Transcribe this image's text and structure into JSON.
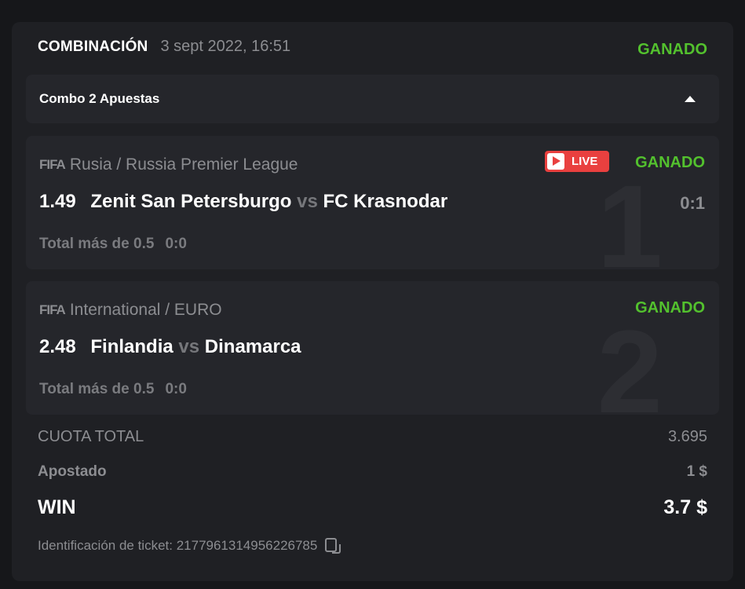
{
  "header": {
    "title": "COMBINACIÓN",
    "datetime": "3 sept 2022, 16:51",
    "status": "GANADO"
  },
  "combo": {
    "label": "Combo 2 Apuestas",
    "toggle_icon": "triangle-up-icon"
  },
  "bets": [
    {
      "index": "1",
      "sport_icon": "FIFA",
      "league": "Rusia / Russia Premier League",
      "live_label": "LIVE",
      "status": "GANADO",
      "odd": "1.49",
      "home": "Zenit San Petersburgo",
      "vs": "vs",
      "away": "FC Krasnodar",
      "score": "0:1",
      "market": "Total más de 0.5",
      "market_score": "0:0"
    },
    {
      "index": "2",
      "sport_icon": "FIFA",
      "league": "International / EURO",
      "status": "GANADO",
      "odd": "2.48",
      "home": "Finlandia",
      "vs": "vs",
      "away": "Dinamarca",
      "market": "Total más de 0.5",
      "market_score": "0:0"
    }
  ],
  "summary": {
    "total_odds_label": "CUOTA TOTAL",
    "total_odds": "3.695",
    "staked_label": "Apostado",
    "staked": "1 $",
    "win_label": "WIN",
    "win": "3.7 $"
  },
  "ticket": {
    "label": "Identificación de ticket: 2177961314956226785",
    "copy_icon": "copy-icon"
  },
  "colors": {
    "win_green": "#53c12e",
    "live_red": "#e9403f",
    "background": "#1f2024"
  }
}
